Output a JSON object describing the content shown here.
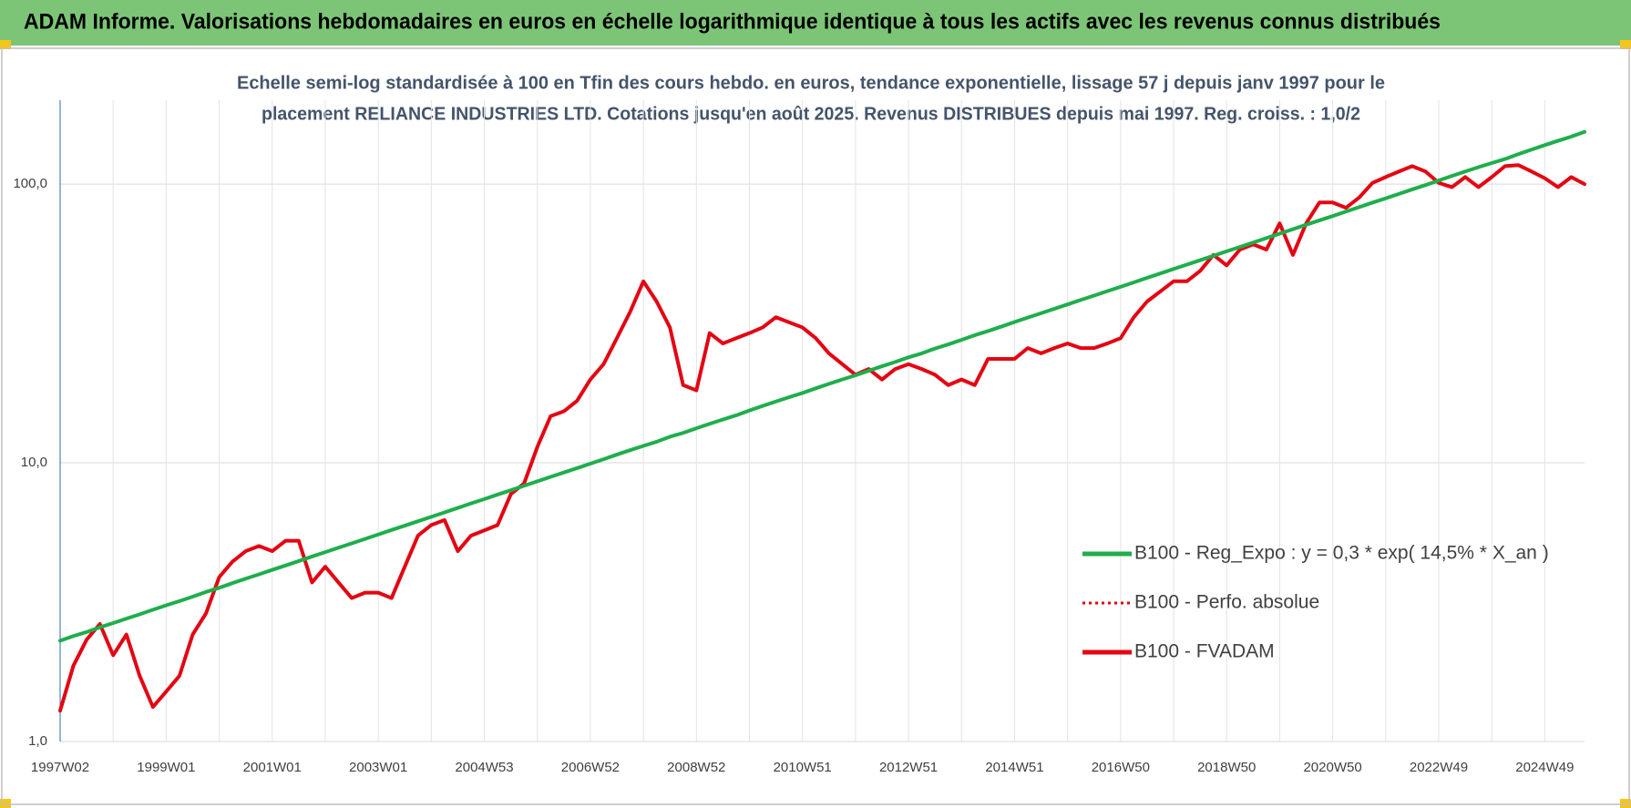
{
  "chart_data": {
    "type": "line",
    "title": "ADAM Informe. Valorisations hebdomadaires en euros en échelle logarithmique identique à tous les actifs avec les revenus connus distribués",
    "subtitle": [
      "Echelle semi-log standardisée à 100 en Tfin des cours hebdo. en euros, tendance exponentielle, lissage 57 j depuis janv 1997 pour le",
      "placement RELIANCE INDUSTRIES LTD. Cotations jusqu'en août 2025. Revenus DISTRIBUES depuis mai 1997. Reg. croiss. : 1,0/2"
    ],
    "log_scale": true,
    "grid": true,
    "legend_position": "right",
    "ylim": [
      1,
      200
    ],
    "yticks": [
      {
        "value": 1,
        "label": "1,0"
      },
      {
        "value": 10,
        "label": "10,0"
      },
      {
        "value": 100,
        "label": "100,0"
      }
    ],
    "categories": [
      "1997W02",
      null,
      null,
      null,
      null,
      null,
      null,
      null,
      "1999W01",
      null,
      null,
      null,
      null,
      null,
      null,
      null,
      "2001W01",
      null,
      null,
      null,
      null,
      null,
      null,
      null,
      "2003W01",
      null,
      null,
      null,
      null,
      null,
      null,
      null,
      "2004W53",
      null,
      null,
      null,
      null,
      null,
      null,
      null,
      "2006W52",
      null,
      null,
      null,
      null,
      null,
      null,
      null,
      "2008W52",
      null,
      null,
      null,
      null,
      null,
      null,
      null,
      "2010W51",
      null,
      null,
      null,
      null,
      null,
      null,
      null,
      "2012W51",
      null,
      null,
      null,
      null,
      null,
      null,
      null,
      "2014W51",
      null,
      null,
      null,
      null,
      null,
      null,
      null,
      "2016W50",
      null,
      null,
      null,
      null,
      null,
      null,
      null,
      "2018W50",
      null,
      null,
      null,
      null,
      null,
      null,
      null,
      "2020W50",
      null,
      null,
      null,
      null,
      null,
      null,
      null,
      "2022W49",
      null,
      null,
      null,
      null,
      null,
      null,
      null,
      "2024W49",
      null,
      null,
      null
    ],
    "series": [
      {
        "name": "B100 - Reg_Expo : y = 0,3 * exp( 14,5% *  X_an )",
        "color": "#1fae4b",
        "style": "solid",
        "values": [
          2.3,
          2.39,
          2.47,
          2.57,
          2.66,
          2.76,
          2.86,
          2.97,
          3.08,
          3.19,
          3.31,
          3.44,
          3.56,
          3.7,
          3.84,
          3.98,
          4.13,
          4.28,
          4.44,
          4.61,
          4.78,
          4.96,
          5.14,
          5.33,
          5.53,
          5.74,
          5.95,
          6.17,
          6.4,
          6.64,
          6.89,
          7.15,
          7.41,
          7.69,
          7.97,
          8.27,
          8.58,
          8.9,
          9.23,
          9.57,
          9.93,
          10.3,
          10.7,
          11.1,
          11.5,
          11.9,
          12.4,
          12.8,
          13.3,
          13.8,
          14.3,
          14.8,
          15.4,
          16.0,
          16.6,
          17.2,
          17.8,
          18.5,
          19.2,
          19.9,
          20.6,
          21.4,
          22.2,
          23.0,
          23.9,
          24.7,
          25.7,
          26.6,
          27.6,
          28.7,
          29.7,
          30.8,
          32.0,
          33.2,
          34.4,
          35.7,
          37.0,
          38.4,
          39.8,
          41.3,
          42.8,
          44.4,
          46.1,
          47.8,
          49.6,
          51.4,
          53.3,
          55.3,
          57.4,
          59.5,
          61.7,
          64.0,
          66.4,
          68.9,
          71.5,
          74.1,
          76.8,
          79.7,
          82.7,
          85.8,
          88.9,
          92.2,
          95.7,
          99.2,
          103,
          107,
          111,
          115,
          119,
          123,
          128,
          133,
          138,
          143,
          148,
          154
        ]
      },
      {
        "name": "B100 - Perfo. absolue",
        "color": "#e30613",
        "style": "dotted",
        "values": [
          1.29,
          1.87,
          2.32,
          2.64,
          2.04,
          2.42,
          1.72,
          1.33,
          1.51,
          1.72,
          2.42,
          2.88,
          3.89,
          4.42,
          4.82,
          5.03,
          4.82,
          5.25,
          5.25,
          3.72,
          4.24,
          3.72,
          3.27,
          3.42,
          3.42,
          3.27,
          4.24,
          5.48,
          5.98,
          6.23,
          4.82,
          5.48,
          5.72,
          5.98,
          7.72,
          8.43,
          11.4,
          14.7,
          15.3,
          16.7,
          19.9,
          22.6,
          28.0,
          34.8,
          44.8,
          37.9,
          30.6,
          19.0,
          18.2,
          29.2,
          26.8,
          28.0,
          29.2,
          30.6,
          33.3,
          31.9,
          30.6,
          28.0,
          24.7,
          22.6,
          20.7,
          21.7,
          19.9,
          21.7,
          22.6,
          21.7,
          20.7,
          19.0,
          19.9,
          19.0,
          23.6,
          23.6,
          23.6,
          25.8,
          24.7,
          25.8,
          26.8,
          25.8,
          25.8,
          26.8,
          28.0,
          33.3,
          37.9,
          41.2,
          44.8,
          44.8,
          48.8,
          55.7,
          51.1,
          58.2,
          60.8,
          58.2,
          72.3,
          55.7,
          72.3,
          85.9,
          85.9,
          82.2,
          89.5,
          101,
          106,
          111,
          116,
          111,
          101,
          97.5,
          106,
          97.5,
          106,
          116,
          117,
          111,
          105,
          97.5,
          106,
          100
        ]
      },
      {
        "name": "B100 - FVADAM",
        "color": "#e30613",
        "style": "solid",
        "values": [
          1.29,
          1.87,
          2.32,
          2.64,
          2.04,
          2.42,
          1.72,
          1.33,
          1.51,
          1.72,
          2.42,
          2.88,
          3.89,
          4.42,
          4.82,
          5.03,
          4.82,
          5.25,
          5.25,
          3.72,
          4.24,
          3.72,
          3.27,
          3.42,
          3.42,
          3.27,
          4.24,
          5.48,
          5.98,
          6.23,
          4.82,
          5.48,
          5.72,
          5.98,
          7.72,
          8.43,
          11.4,
          14.7,
          15.3,
          16.7,
          19.9,
          22.6,
          28.0,
          34.8,
          44.8,
          37.9,
          30.6,
          19.0,
          18.2,
          29.2,
          26.8,
          28.0,
          29.2,
          30.6,
          33.3,
          31.9,
          30.6,
          28.0,
          24.7,
          22.6,
          20.7,
          21.7,
          19.9,
          21.7,
          22.6,
          21.7,
          20.7,
          19.0,
          19.9,
          19.0,
          23.6,
          23.6,
          23.6,
          25.8,
          24.7,
          25.8,
          26.8,
          25.8,
          25.8,
          26.8,
          28.0,
          33.3,
          37.9,
          41.2,
          44.8,
          44.8,
          48.8,
          55.7,
          51.1,
          58.2,
          60.8,
          58.2,
          72.3,
          55.7,
          72.3,
          85.9,
          85.9,
          82.2,
          89.5,
          101,
          106,
          111,
          116,
          111,
          101,
          97.5,
          106,
          97.5,
          106,
          116,
          117,
          111,
          105,
          97.5,
          106,
          100
        ]
      }
    ]
  }
}
